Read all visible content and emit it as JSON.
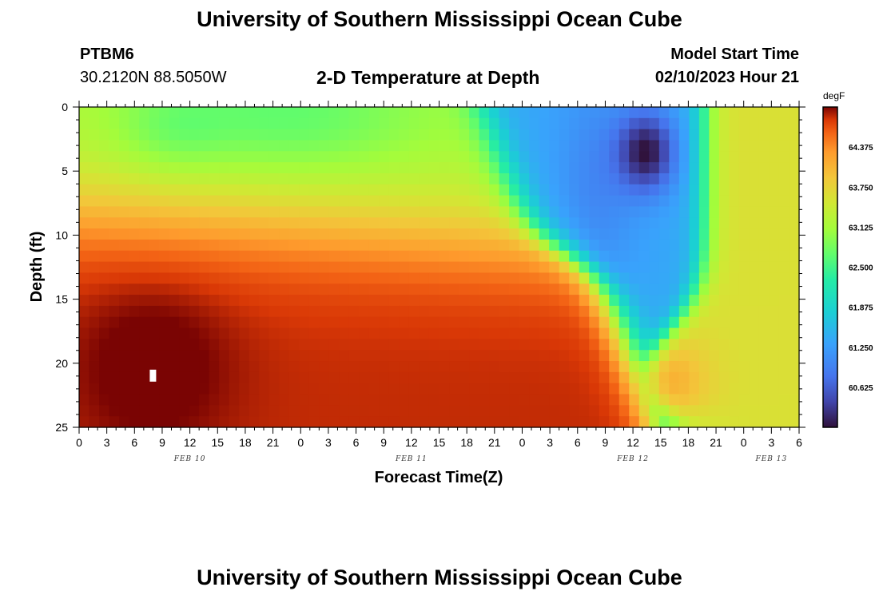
{
  "header": {
    "title": "University of Southern Mississippi Ocean Cube",
    "station": "PTBM6",
    "coords": "30.2120N  88.5050W",
    "subtitle": "2-D Temperature at Depth",
    "start_label": "Model Start Time",
    "start_value": "02/10/2023 Hour 21"
  },
  "footer": {
    "title": "University of Southern Mississippi Ocean Cube"
  },
  "chart_data": {
    "type": "heatmap",
    "title": "2-D Temperature at Depth",
    "xlabel": "Forecast Time(Z)",
    "ylabel": "Depth (ft)",
    "x_hours_range": [
      0,
      78
    ],
    "y_range_ft": [
      0,
      25
    ],
    "y_ticks": [
      0,
      5,
      10,
      15,
      20,
      25
    ],
    "x_tick_labels": [
      "0",
      "3",
      "6",
      "9",
      "12",
      "15",
      "18",
      "21",
      "0",
      "3",
      "6",
      "9",
      "12",
      "15",
      "18",
      "21",
      "0",
      "3",
      "6",
      "9",
      "12",
      "15",
      "18",
      "21",
      "0",
      "3",
      "6"
    ],
    "date_labels": [
      {
        "label": "FEB 10",
        "hour": 12
      },
      {
        "label": "FEB 11",
        "hour": 36
      },
      {
        "label": "FEB 12",
        "hour": 60
      },
      {
        "label": "FEB 13",
        "hour": 75
      }
    ],
    "colorbar": {
      "unit": "degF",
      "min": 60.0,
      "max": 65.0,
      "labels": [
        "64.375",
        "63.750",
        "63.125",
        "62.500",
        "61.875",
        "61.250",
        "60.625"
      ]
    },
    "missing_cell": {
      "hour": 8,
      "depth": 21
    },
    "features": [
      {
        "name": "surface warm layer",
        "hours": [
          0,
          40
        ],
        "depths": [
          0,
          12
        ],
        "temp_degF": 63.1
      },
      {
        "name": "deep warm core",
        "hours": [
          0,
          48
        ],
        "depths": [
          12,
          25
        ],
        "temp_degF": 64.7
      },
      {
        "name": "cold intrusion",
        "hours": [
          48,
          66
        ],
        "depths": [
          0,
          25
        ],
        "temp_degF": 61.0
      },
      {
        "name": "cold core",
        "hours": [
          58,
          64
        ],
        "depths": [
          1,
          7
        ],
        "temp_degF": 60.1
      },
      {
        "name": "late warm patch",
        "hours": [
          60,
          70
        ],
        "depths": [
          18,
          25
        ],
        "temp_degF": 64.0
      },
      {
        "name": "late uniform layer",
        "hours": [
          66,
          78
        ],
        "depths": [
          0,
          25
        ],
        "temp_degF": 63.6
      }
    ]
  }
}
